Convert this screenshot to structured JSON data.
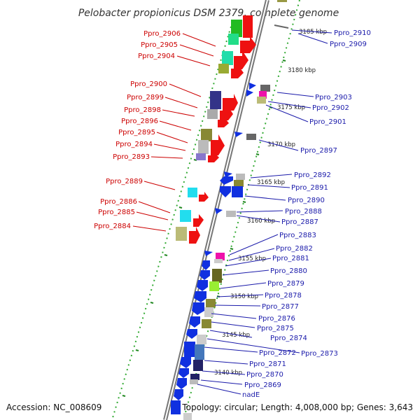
{
  "title": "Pelobacter propionicus DSM 2379, complete genome",
  "footer": {
    "accession": "Accession: NC_008609",
    "topology": "Topology: circular; Length: 4,008,000 bp; Genes: 3,643"
  },
  "colors": {
    "forward_gene": "#ee1111",
    "reverse_gene": "#1030e0",
    "backbone": "#888888",
    "tick_dots": "#33aa33",
    "left_label": "#cc0000",
    "right_label": "#1a1aaa"
  },
  "ticks": [
    "3185 kbp",
    "3180 kbp",
    "3175 kbp",
    "3170 kbp",
    "3165 kbp",
    "3160 kbp",
    "3155 kbp",
    "3150 kbp",
    "3145 kbp",
    "3140 kbp"
  ],
  "left_labels": [
    "Ppro_2906",
    "Ppro_2905",
    "Ppro_2904",
    "Ppro_2900",
    "Ppro_2899",
    "Ppro_2898",
    "Ppro_2896",
    "Ppro_2895",
    "Ppro_2894",
    "Ppro_2893",
    "Ppro_2889",
    "Ppro_2886",
    "Ppro_2885",
    "Ppro_2884"
  ],
  "right_labels": [
    "Ppro_2910",
    "Ppro_2909",
    "Ppro_2903",
    "Ppro_2902",
    "Ppro_2901",
    "Ppro_2897",
    "Ppro_2892",
    "Ppro_2891",
    "Ppro_2890",
    "Ppro_2888",
    "Ppro_2887",
    "Ppro_2883",
    "Ppro_2882",
    "Ppro_2881",
    "Ppro_2880",
    "Ppro_2879",
    "Ppro_2878",
    "Ppro_2877",
    "Ppro_2876",
    "Ppro_2875",
    "Ppro_2874",
    "Ppro_2873",
    "Ppro_2872",
    "Ppro_2871",
    "Ppro_2870",
    "Ppro_2869",
    "nadE"
  ]
}
